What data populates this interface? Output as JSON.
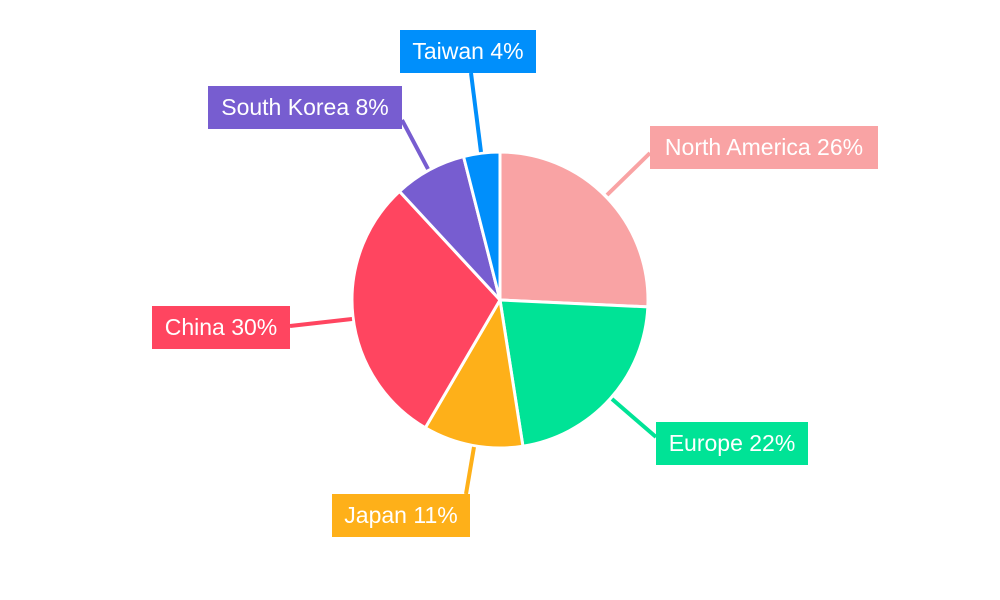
{
  "chart_data": {
    "type": "pie",
    "title": "",
    "start_angle": "top",
    "direction": "clockwise",
    "slices": [
      {
        "name": "North America",
        "value": 26,
        "label": "North America 26%",
        "color": "#F9A3A4"
      },
      {
        "name": "Europe",
        "value": 22,
        "label": "Europe 22%",
        "color": "#00E396"
      },
      {
        "name": "Japan",
        "value": 11,
        "label": "Japan 11%",
        "color": "#FEB019"
      },
      {
        "name": "China",
        "value": 30,
        "label": "China 30%",
        "color": "#FF4560"
      },
      {
        "name": "South Korea",
        "value": 8,
        "label": "South Korea 8%",
        "color": "#775DD0"
      },
      {
        "name": "Taiwan",
        "value": 4,
        "label": "Taiwan 4%",
        "color": "#008FFB"
      }
    ]
  }
}
